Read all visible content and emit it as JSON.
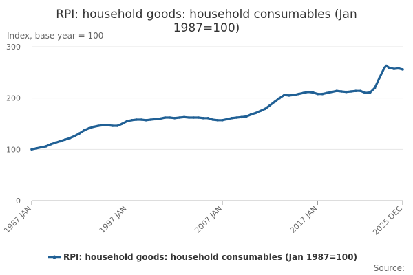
{
  "chart_data": {
    "type": "line",
    "title_line1": "RPI: household goods: household consumables (Jan",
    "title_line2": "1987=100)",
    "units_label": "Index, base year = 100",
    "source_label": "Source:",
    "ylim": [
      0,
      300
    ],
    "y_ticks": [
      "0",
      "100",
      "200",
      "300"
    ],
    "x_ticks": [
      "1987 JAN",
      "1997 JAN",
      "2007 JAN",
      "2017 JAN",
      "2025 DEC"
    ],
    "x_tick_years": [
      1987.0,
      1997.0,
      2007.0,
      2017.0,
      2025.917
    ],
    "xlim": [
      1987.0,
      2025.917
    ],
    "grid": true,
    "legend_position": "bottom",
    "series": [
      {
        "name": "RPI: household goods: household consumables (Jan 1987=100)",
        "color": "#206095",
        "points": [
          [
            1987.0,
            100
          ],
          [
            1987.5,
            102
          ],
          [
            1988.0,
            104
          ],
          [
            1988.5,
            106
          ],
          [
            1989.0,
            110
          ],
          [
            1989.5,
            113
          ],
          [
            1990.0,
            116
          ],
          [
            1990.5,
            119
          ],
          [
            1991.0,
            122
          ],
          [
            1991.5,
            126
          ],
          [
            1992.0,
            131
          ],
          [
            1992.5,
            137
          ],
          [
            1993.0,
            141
          ],
          [
            1993.5,
            144
          ],
          [
            1994.0,
            146
          ],
          [
            1994.5,
            147
          ],
          [
            1995.0,
            147
          ],
          [
            1995.5,
            146
          ],
          [
            1996.0,
            146
          ],
          [
            1996.5,
            150
          ],
          [
            1997.0,
            155
          ],
          [
            1997.5,
            157
          ],
          [
            1998.0,
            158
          ],
          [
            1998.5,
            158
          ],
          [
            1999.0,
            157
          ],
          [
            1999.5,
            158
          ],
          [
            2000.0,
            159
          ],
          [
            2000.5,
            160
          ],
          [
            2001.0,
            162
          ],
          [
            2001.5,
            162
          ],
          [
            2002.0,
            161
          ],
          [
            2002.5,
            162
          ],
          [
            2003.0,
            163
          ],
          [
            2003.5,
            162
          ],
          [
            2004.0,
            162
          ],
          [
            2004.5,
            162
          ],
          [
            2005.0,
            161
          ],
          [
            2005.5,
            161
          ],
          [
            2006.0,
            158
          ],
          [
            2006.5,
            157
          ],
          [
            2007.0,
            157
          ],
          [
            2007.5,
            159
          ],
          [
            2008.0,
            161
          ],
          [
            2008.5,
            162
          ],
          [
            2009.0,
            163
          ],
          [
            2009.5,
            164
          ],
          [
            2010.0,
            168
          ],
          [
            2010.5,
            171
          ],
          [
            2011.0,
            175
          ],
          [
            2011.5,
            179
          ],
          [
            2012.0,
            186
          ],
          [
            2012.5,
            193
          ],
          [
            2013.0,
            200
          ],
          [
            2013.5,
            206
          ],
          [
            2014.0,
            205
          ],
          [
            2014.5,
            206
          ],
          [
            2015.0,
            208
          ],
          [
            2015.5,
            210
          ],
          [
            2016.0,
            212
          ],
          [
            2016.5,
            211
          ],
          [
            2017.0,
            208
          ],
          [
            2017.5,
            208
          ],
          [
            2018.0,
            210
          ],
          [
            2018.5,
            212
          ],
          [
            2019.0,
            214
          ],
          [
            2019.5,
            213
          ],
          [
            2020.0,
            212
          ],
          [
            2020.5,
            213
          ],
          [
            2021.0,
            214
          ],
          [
            2021.5,
            214
          ],
          [
            2022.0,
            210
          ],
          [
            2022.5,
            211
          ],
          [
            2023.0,
            220
          ],
          [
            2023.5,
            240
          ],
          [
            2024.0,
            259
          ],
          [
            2024.2,
            263
          ],
          [
            2024.5,
            259
          ],
          [
            2025.0,
            257
          ],
          [
            2025.5,
            258
          ],
          [
            2025.917,
            256
          ]
        ]
      }
    ]
  }
}
